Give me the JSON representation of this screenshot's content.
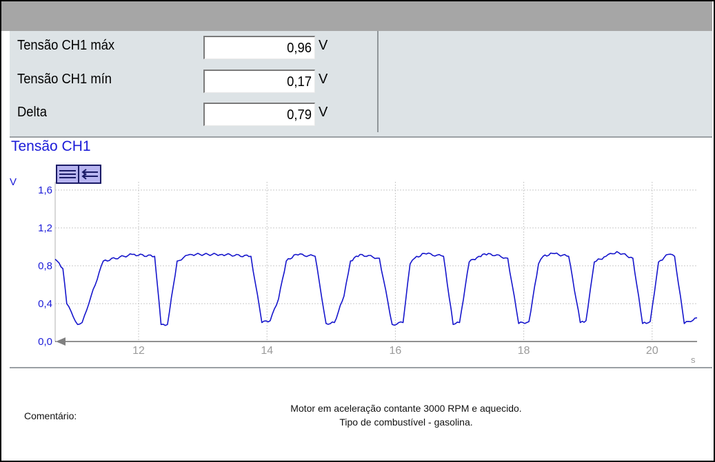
{
  "measurements": [
    {
      "label": "Tensão CH1 máx",
      "value": "0,96",
      "unit": "V"
    },
    {
      "label": "Tensão CH1 mín",
      "value": "0,17",
      "unit": "V"
    },
    {
      "label": "Delta",
      "value": "0,79",
      "unit": "V"
    }
  ],
  "chart_data": {
    "type": "line",
    "title": "Tensão CH1",
    "ylabel": "V",
    "xlabel": "s",
    "xlim": [
      10.7,
      20.7
    ],
    "ylim": [
      0,
      1.6
    ],
    "yticks": [
      "0,0",
      "0,4",
      "0,8",
      "1,2",
      "1,6"
    ],
    "xticks": [
      "12",
      "14",
      "16",
      "18",
      "20"
    ],
    "grid": true,
    "series": [
      {
        "color": "#1515cc",
        "x": [
          10.7,
          10.82,
          10.88,
          11.05,
          11.12,
          11.26,
          11.45,
          11.9,
          12.25,
          12.35,
          12.45,
          12.6,
          12.8,
          13.3,
          13.75,
          13.92,
          14.05,
          14.18,
          14.3,
          14.45,
          14.75,
          14.92,
          15.05,
          15.2,
          15.3,
          15.45,
          15.75,
          15.95,
          16.12,
          16.23,
          16.3,
          16.45,
          16.75,
          16.9,
          17.0,
          17.15,
          17.3,
          17.45,
          17.75,
          17.92,
          18.08,
          18.23,
          18.3,
          18.45,
          18.7,
          18.88,
          18.97,
          19.1,
          19.28,
          19.45,
          19.7,
          19.85,
          19.97,
          20.1,
          20.25,
          20.35,
          20.5,
          20.7
        ],
        "y": [
          0.87,
          0.77,
          0.4,
          0.18,
          0.2,
          0.48,
          0.85,
          0.92,
          0.9,
          0.18,
          0.18,
          0.85,
          0.92,
          0.92,
          0.9,
          0.2,
          0.22,
          0.45,
          0.85,
          0.92,
          0.9,
          0.19,
          0.2,
          0.48,
          0.85,
          0.92,
          0.88,
          0.18,
          0.2,
          0.82,
          0.88,
          0.93,
          0.9,
          0.18,
          0.2,
          0.84,
          0.9,
          0.93,
          0.88,
          0.19,
          0.21,
          0.82,
          0.9,
          0.93,
          0.9,
          0.2,
          0.22,
          0.84,
          0.9,
          0.95,
          0.88,
          0.19,
          0.21,
          0.84,
          0.92,
          0.9,
          0.19,
          0.25
        ]
      }
    ]
  },
  "comment": {
    "label": "Comentário:",
    "line1": "Motor em aceleração contante 3000 RPM e aquecido.",
    "line2": "Tipo de combustível - gasolina."
  }
}
